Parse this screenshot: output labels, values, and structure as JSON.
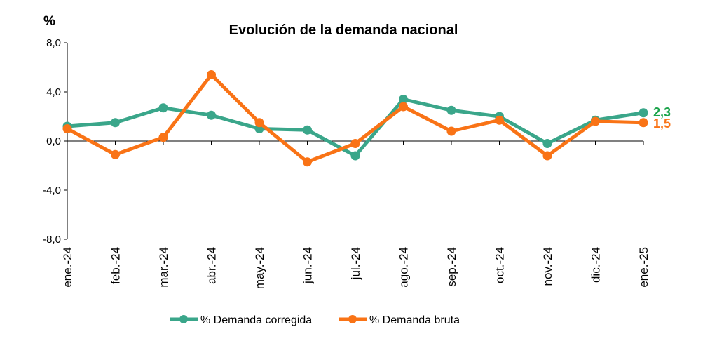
{
  "chart_data": {
    "type": "line",
    "title": "Evolución de la demanda nacional",
    "unit_label": "%",
    "categories": [
      "ene.-24",
      "feb.-24",
      "mar.-24",
      "abr.-24",
      "may.-24",
      "jun.-24",
      "jul.-24",
      "ago.-24",
      "sep.-24",
      "oct.-24",
      "nov.-24",
      "dic.-24",
      "ene.-25"
    ],
    "ylim": [
      -8,
      8
    ],
    "yticks": [
      "8,0",
      "4,0",
      "0,0",
      "-4,0",
      "-8,0"
    ],
    "ytick_values": [
      8,
      4,
      0,
      -4,
      -8
    ],
    "grid": false,
    "legend_position": "bottom",
    "series": [
      {
        "name": "% Demanda corregida",
        "color": "#3aa68a",
        "values": [
          1.2,
          1.5,
          2.7,
          2.1,
          1.0,
          0.9,
          -1.2,
          3.4,
          2.5,
          2.0,
          -0.2,
          1.7,
          2.3
        ],
        "end_label": "2,3",
        "end_label_color": "#1aa34a"
      },
      {
        "name": "% Demanda bruta",
        "color": "#f97316",
        "values": [
          1.0,
          -1.1,
          0.3,
          5.4,
          1.5,
          -1.7,
          -0.2,
          2.8,
          0.8,
          1.7,
          -1.2,
          1.6,
          1.5
        ],
        "end_label": "1,5",
        "end_label_color": "#f97316"
      }
    ]
  }
}
